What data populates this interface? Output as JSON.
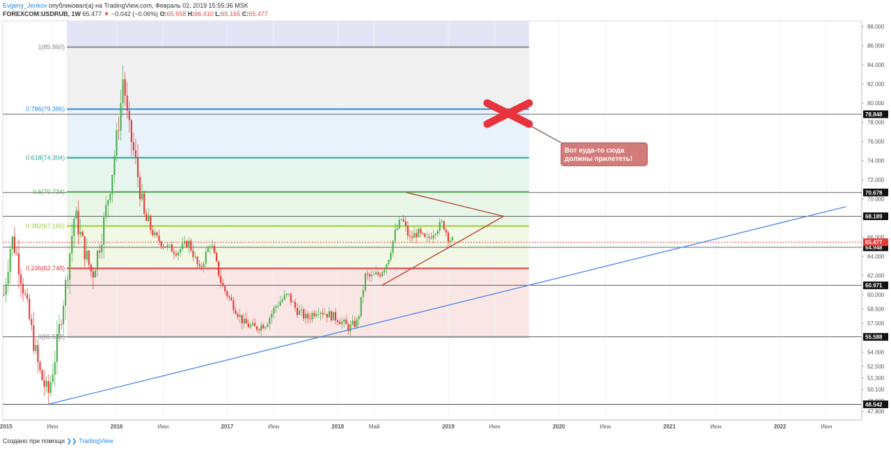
{
  "header": {
    "author": "Evgeny_Jenkov",
    "published_text": "опубликовал(а) на TradingView.com, Февраль 02, 2019 15:55:36 MSK",
    "symbol": "FOREXCOM:USDRUB, 1W",
    "last": "65.477",
    "change_arrow": "▼",
    "change": "−0.042 (−0.06%)",
    "o_label": "O:",
    "o_val": "65.658",
    "h_label": "H:",
    "h_val": "66.410",
    "l_label": "L:",
    "l_val": "65.165",
    "c_label": "C:",
    "c_val": "65.477"
  },
  "footer": {
    "created_with": "Создано при помощи",
    "brand": "TradingView"
  },
  "colors": {
    "up": "#4caf50",
    "down": "#e53935",
    "fib_0": "#888888",
    "fib_0236": "#e53935",
    "fib_0382": "#9acd32",
    "fib_05": "#4caf50",
    "fib_0618": "#26a69a",
    "fib_0786": "#2a8ae0",
    "fib_1": "#888888",
    "trend": "#4a86e8",
    "triangle": "#b5442c",
    "cross": "#e8323c"
  },
  "chart_data": {
    "type": "candlestick",
    "ylim": [
      46.9,
      88.6
    ],
    "price_ticks": [
      "88.000",
      "86.000",
      "84.000",
      "82.000",
      "80.000",
      "78.000",
      "76.000",
      "74.000",
      "72.000",
      "70.000",
      "68.000",
      "66.000",
      "64.000",
      "62.000",
      "60.000",
      "58.500",
      "57.000",
      "55.500",
      "54.000",
      "52.500",
      "51.300",
      "50.100",
      "48.900",
      "47.800"
    ],
    "time_labels": [
      {
        "t": 2015.0,
        "label": "2015"
      },
      {
        "t": 2015.42,
        "label": "Июн"
      },
      {
        "t": 2016.0,
        "label": "2016"
      },
      {
        "t": 2016.42,
        "label": "Июн"
      },
      {
        "t": 2017.0,
        "label": "2017"
      },
      {
        "t": 2017.42,
        "label": "Июн"
      },
      {
        "t": 2018.0,
        "label": "2018"
      },
      {
        "t": 2018.33,
        "label": "Май"
      },
      {
        "t": 2019.0,
        "label": "2019"
      },
      {
        "t": 2019.42,
        "label": "Июн"
      },
      {
        "t": 2020.0,
        "label": "2020"
      },
      {
        "t": 2020.42,
        "label": "Июн"
      },
      {
        "t": 2021.0,
        "label": "2021"
      },
      {
        "t": 2021.42,
        "label": "Июн"
      },
      {
        "t": 2022.0,
        "label": "2022"
      },
      {
        "t": 2022.42,
        "label": "Июн"
      }
    ],
    "fib_levels": [
      {
        "label": "1(85.860)",
        "price": 85.86,
        "color": "#888888"
      },
      {
        "label": "0.786(79.386)",
        "price": 79.386,
        "color": "#2a8ae0"
      },
      {
        "label": "0.618(74.304)",
        "price": 74.304,
        "color": "#26a69a"
      },
      {
        "label": "0.5(70.734)",
        "price": 70.734,
        "color": "#4caf50"
      },
      {
        "label": "0.382(67.165)",
        "price": 67.165,
        "color": "#9acd32"
      },
      {
        "label": "0.236(62.748)",
        "price": 62.748,
        "color": "#e53935"
      },
      {
        "label": "0(55.588)",
        "price": 55.588,
        "color": "#888888"
      }
    ],
    "horizontal_levels": [
      {
        "price": 78.848,
        "label": "78.848"
      },
      {
        "price": 70.678,
        "label": "70.678"
      },
      {
        "price": 68.189,
        "label": "68.189"
      },
      {
        "price": 64.948,
        "label": "64.948"
      },
      {
        "price": 60.971,
        "label": "60.971"
      },
      {
        "price": 55.588,
        "label": "55.588"
      },
      {
        "price": 48.542,
        "label": "48.542"
      }
    ],
    "last_price": {
      "price": 65.477,
      "label": "65.477"
    },
    "annotation": {
      "text_line1": "Вот куда-то сюда",
      "text_line2": "должны прилететь!"
    },
    "price_path": [
      [
        2014.98,
        60.0
      ],
      [
        2015.05,
        66.0
      ],
      [
        2015.1,
        64.0
      ],
      [
        2015.2,
        58.0
      ],
      [
        2015.3,
        52.0
      ],
      [
        2015.38,
        49.5
      ],
      [
        2015.45,
        54.0
      ],
      [
        2015.55,
        62.0
      ],
      [
        2015.62,
        68.5
      ],
      [
        2015.7,
        65.0
      ],
      [
        2015.78,
        62.0
      ],
      [
        2015.86,
        66.0
      ],
      [
        2015.95,
        72.0
      ],
      [
        2016.03,
        79.0
      ],
      [
        2016.06,
        83.0
      ],
      [
        2016.1,
        78.0
      ],
      [
        2016.17,
        74.0
      ],
      [
        2016.25,
        68.0
      ],
      [
        2016.35,
        66.0
      ],
      [
        2016.45,
        65.0
      ],
      [
        2016.55,
        64.5
      ],
      [
        2016.65,
        65.5
      ],
      [
        2016.75,
        62.5
      ],
      [
        2016.85,
        65.5
      ],
      [
        2016.95,
        61.0
      ],
      [
        2017.05,
        59.0
      ],
      [
        2017.15,
        57.0
      ],
      [
        2017.25,
        56.5
      ],
      [
        2017.35,
        57.0
      ],
      [
        2017.45,
        59.0
      ],
      [
        2017.55,
        60.0
      ],
      [
        2017.62,
        58.5
      ],
      [
        2017.72,
        57.5
      ],
      [
        2017.82,
        58.5
      ],
      [
        2017.9,
        58.0
      ],
      [
        2018.0,
        57.5
      ],
      [
        2018.1,
        56.5
      ],
      [
        2018.18,
        57.2
      ],
      [
        2018.25,
        62.0
      ],
      [
        2018.3,
        61.8
      ],
      [
        2018.38,
        62.2
      ],
      [
        2018.45,
        63.5
      ],
      [
        2018.52,
        66.5
      ],
      [
        2018.58,
        68.0
      ],
      [
        2018.65,
        65.8
      ],
      [
        2018.72,
        66.5
      ],
      [
        2018.8,
        65.6
      ],
      [
        2018.88,
        66.8
      ],
      [
        2018.95,
        67.5
      ],
      [
        2019.0,
        66.0
      ],
      [
        2019.05,
        65.5
      ]
    ],
    "trend_line": {
      "from": [
        2015.38,
        48.542
      ],
      "to": [
        2022.6,
        69.2
      ]
    },
    "triangle": {
      "top": [
        2018.62,
        70.678
      ],
      "apex": [
        2019.5,
        68.189
      ],
      "bottom": [
        2018.4,
        60.971
      ]
    },
    "fib_time_range": [
      2015.55,
      2019.73
    ]
  }
}
